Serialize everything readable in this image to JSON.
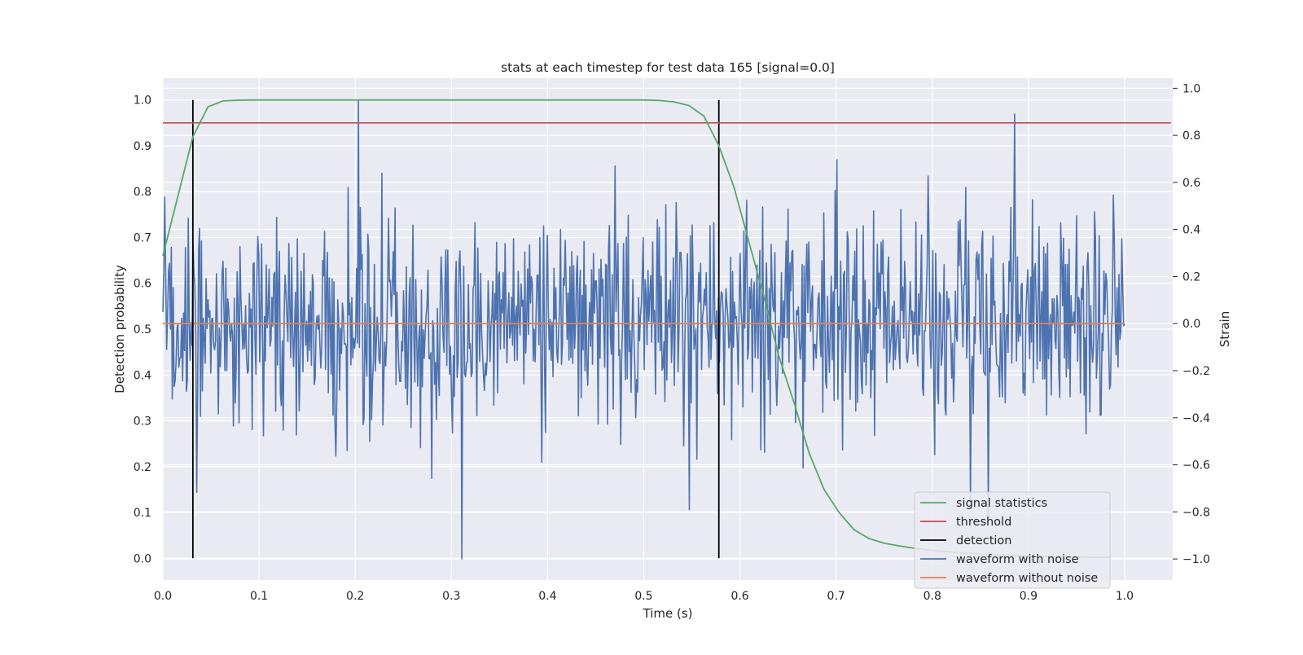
{
  "chart_data": {
    "type": "line",
    "title": "stats at each timestep for test data 165 [signal=0.0]",
    "xlabel": "Time (s)",
    "ylabel": "Detection probability",
    "y2label": "Strain",
    "xlim": [
      0.0,
      1.05
    ],
    "ylim": [
      -0.0475,
      1.0475
    ],
    "y2lim": [
      -1.0896,
      1.0428
    ],
    "grid": true,
    "legend_position": "lower right",
    "x_ticks": [
      "0.0",
      "0.1",
      "0.2",
      "0.3",
      "0.4",
      "0.5",
      "0.6",
      "0.7",
      "0.8",
      "0.9",
      "1.0"
    ],
    "y_ticks": [
      "0.0",
      "0.1",
      "0.2",
      "0.3",
      "0.4",
      "0.5",
      "0.6",
      "0.7",
      "0.8",
      "0.9",
      "1.0"
    ],
    "y2_ticks": [
      "−1.0",
      "−0.8",
      "−0.6",
      "−0.4",
      "−0.2",
      "0.0",
      "0.2",
      "0.4",
      "0.6",
      "0.8",
      "1.0"
    ],
    "series": [
      {
        "name": "signal statistics",
        "color": "#55a868",
        "axis": "left",
        "x": [
          0.0,
          0.0156,
          0.0312,
          0.0469,
          0.0625,
          0.0781,
          0.0938,
          0.1094,
          0.125,
          0.15,
          0.2,
          0.3,
          0.4,
          0.5,
          0.5156,
          0.5312,
          0.5469,
          0.5625,
          0.5781,
          0.5938,
          0.6094,
          0.625,
          0.6406,
          0.6562,
          0.6719,
          0.6875,
          0.7031,
          0.7188,
          0.7344,
          0.75,
          0.7656,
          0.7812,
          0.7969,
          0.8125,
          0.8281,
          0.8438,
          0.8594,
          0.875,
          0.8906,
          0.9062,
          0.9219,
          0.9375,
          0.9531,
          0.9688,
          0.9844
        ],
        "values": [
          0.66,
          0.79,
          0.92,
          0.985,
          0.998,
          0.9995,
          1.0,
          1.0,
          1.0,
          1.0,
          1.0,
          1.0,
          1.0,
          1.0,
          0.999,
          0.996,
          0.988,
          0.965,
          0.9,
          0.81,
          0.69,
          0.57,
          0.44,
          0.34,
          0.23,
          0.15,
          0.1,
          0.062,
          0.043,
          0.033,
          0.027,
          0.022,
          0.018,
          0.015,
          0.012,
          0.01,
          0.008,
          0.007,
          0.006,
          0.005,
          0.004,
          0.003,
          0.003,
          0.002,
          0.002
        ]
      },
      {
        "name": "threshold",
        "color": "#c44e52",
        "axis": "left",
        "x": [
          0.0,
          1.0484
        ],
        "values": [
          0.95,
          0.95
        ]
      },
      {
        "name": "detection",
        "color": "#000000",
        "axis": "left",
        "x": [
          0.0312,
          0.5781
        ],
        "values": [
          [
            0.0,
            1.0
          ],
          [
            0.0,
            1.0
          ]
        ]
      },
      {
        "name": "waveform with noise",
        "color": "#4c72b0",
        "axis": "right",
        "samples": 1024,
        "x_range": [
          0.0,
          1.0
        ],
        "range": [
          -1.0,
          0.95
        ],
        "peaks": [
          {
            "x": 0.203,
            "y": 0.95
          },
          {
            "x": 0.886,
            "y": 0.89
          },
          {
            "x": 0.311,
            "y": -1.0
          },
          {
            "x": 0.84,
            "y": -0.76
          },
          {
            "x": 0.547,
            "y": -0.79
          },
          {
            "x": 0.858,
            "y": -0.82
          }
        ]
      },
      {
        "name": "waveform without noise",
        "color": "#dd8452",
        "axis": "right",
        "x": [
          0.0,
          1.0
        ],
        "values": [
          0.0,
          0.0
        ]
      }
    ]
  }
}
